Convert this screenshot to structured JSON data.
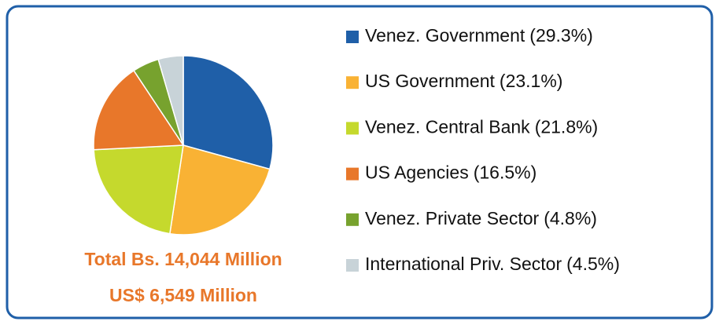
{
  "chart_data": {
    "type": "pie",
    "categories": [
      "Venez. Government",
      "US Government",
      "Venez. Central Bank",
      "US Agencies",
      "Venez. Private Sector",
      "International Priv. Sector"
    ],
    "values": [
      29.3,
      23.1,
      21.8,
      16.5,
      4.8,
      4.5
    ],
    "value_labels": [
      "(29.3%)",
      "(23.1%)",
      "(21.8%)",
      "(16.5%)",
      "(4.8%)",
      "(4.5%)"
    ],
    "colors": [
      "#1f5fa8",
      "#f9b234",
      "#c5d92d",
      "#e8772a",
      "#77a22e",
      "#c8d3d8"
    ],
    "annotations": [
      "Total Bs. 14,044 Million",
      "US$ 6,549 Million"
    ]
  }
}
